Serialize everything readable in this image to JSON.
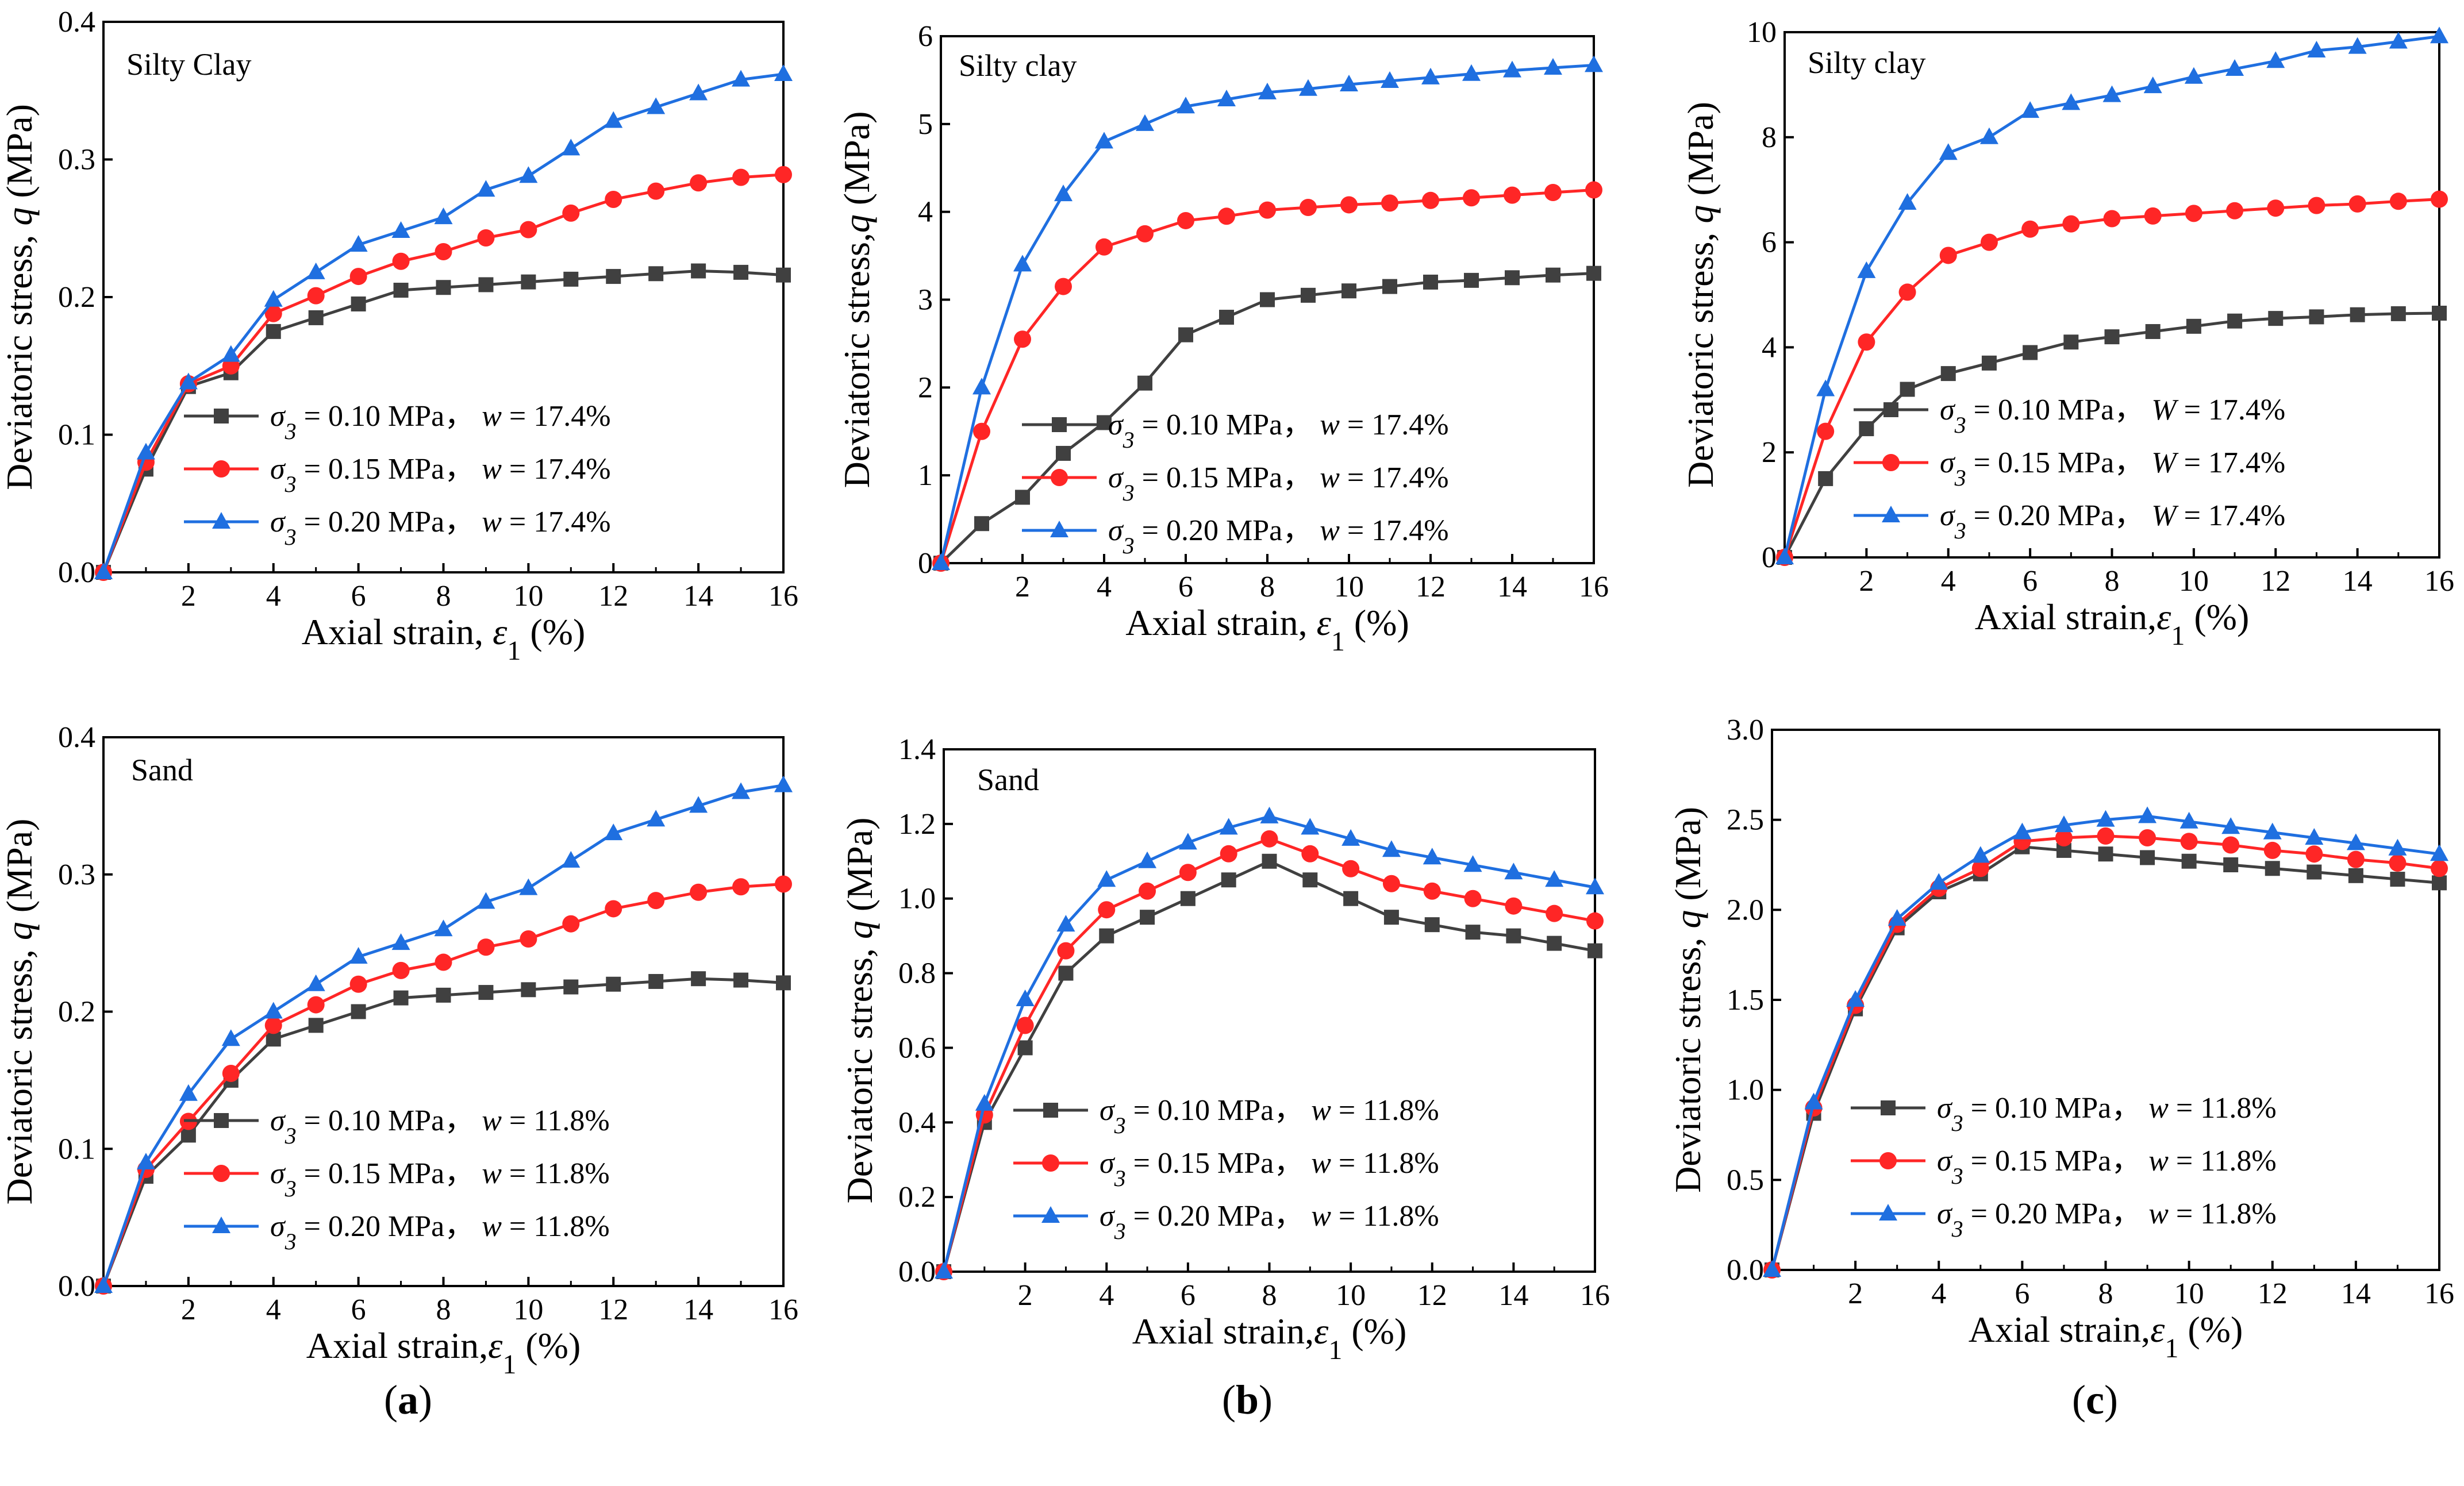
{
  "figure": {
    "sublabels": [
      "(a)",
      "(b)",
      "(c)"
    ]
  },
  "chart_data": [
    {
      "type": "line",
      "title": "Silty Clay",
      "xlabel": "Axial strain, ε1 (%)",
      "ylabel": "Deviatoric stress, q (MPa)",
      "xlim": [
        0,
        16
      ],
      "ylim": [
        0,
        0.4
      ],
      "xticks": [
        2,
        4,
        6,
        8,
        10,
        12,
        14,
        16
      ],
      "yticks": [
        0.0,
        0.1,
        0.2,
        0.3,
        0.4
      ],
      "ytick_labels": [
        "0.0",
        "0.1",
        "0.2",
        "0.3",
        "0.4"
      ],
      "x": [
        0,
        1,
        2,
        3,
        4,
        5,
        6,
        7,
        8,
        9,
        10,
        11,
        12,
        13,
        14,
        15,
        16
      ],
      "series": [
        {
          "name": "σ3 = 0.10 MPa，w = 17.4%",
          "color": "#404040",
          "marker": "square",
          "values": [
            0,
            0.075,
            0.135,
            0.145,
            0.175,
            0.185,
            0.195,
            0.205,
            0.207,
            0.209,
            0.211,
            0.213,
            0.215,
            0.217,
            0.219,
            0.218,
            0.216
          ]
        },
        {
          "name": "σ3 = 0.15 MPa，w = 17.4%",
          "color": "#ff2626",
          "marker": "circle",
          "values": [
            0,
            0.08,
            0.137,
            0.15,
            0.188,
            0.201,
            0.215,
            0.226,
            0.233,
            0.243,
            0.249,
            0.261,
            0.271,
            0.277,
            0.283,
            0.287,
            0.289
          ]
        },
        {
          "name": "σ3 = 0.20 MPa，w = 17.4%",
          "color": "#1f6fe0",
          "marker": "triangle",
          "values": [
            0,
            0.087,
            0.138,
            0.158,
            0.198,
            0.218,
            0.238,
            0.248,
            0.258,
            0.278,
            0.288,
            0.308,
            0.328,
            0.338,
            0.348,
            0.358,
            0.362
          ]
        }
      ],
      "legend_labels": [
        {
          "sigma": "= 0.10 MPa，",
          "w": "= 17.4%"
        },
        {
          "sigma": "= 0.15 MPa，",
          "w": "= 17.4%"
        },
        {
          "sigma": "= 0.20 MPa，",
          "w": "= 17.4%"
        }
      ],
      "legend_w_symbol": "w"
    },
    {
      "type": "line",
      "title": "Silty clay",
      "xlabel": "Axial strain, ε1 (%)",
      "ylabel": "Deviatoric stress,q (MPa)",
      "xlim": [
        0,
        16
      ],
      "ylim": [
        0,
        6
      ],
      "xticks": [
        2,
        4,
        6,
        8,
        10,
        12,
        14,
        16
      ],
      "yticks": [
        0,
        1,
        2,
        3,
        4,
        5,
        6
      ],
      "ytick_labels": [
        "0",
        "1",
        "2",
        "3",
        "4",
        "5",
        "6"
      ],
      "x": [
        0,
        1,
        2,
        3,
        4,
        5,
        6,
        7,
        8,
        9,
        10,
        11,
        12,
        13,
        14,
        15,
        16
      ],
      "series": [
        {
          "name": "σ3 = 0.10 MPa，w = 17.4%",
          "color": "#404040",
          "marker": "square",
          "values": [
            0,
            0.45,
            0.75,
            1.25,
            1.6,
            2.05,
            2.6,
            2.8,
            3.0,
            3.05,
            3.1,
            3.15,
            3.2,
            3.22,
            3.25,
            3.28,
            3.3
          ]
        },
        {
          "name": "σ3 = 0.15 MPa，w = 17.4%",
          "color": "#ff2626",
          "marker": "circle",
          "values": [
            0,
            1.5,
            2.55,
            3.15,
            3.6,
            3.75,
            3.9,
            3.95,
            4.02,
            4.05,
            4.08,
            4.1,
            4.13,
            4.16,
            4.19,
            4.22,
            4.25
          ]
        },
        {
          "name": "σ3 = 0.20 MPa，w = 17.4%",
          "color": "#1f6fe0",
          "marker": "triangle",
          "values": [
            0,
            2.0,
            3.4,
            4.2,
            4.8,
            5.0,
            5.2,
            5.28,
            5.36,
            5.4,
            5.45,
            5.49,
            5.53,
            5.57,
            5.61,
            5.64,
            5.67
          ]
        }
      ],
      "legend_labels": [
        {
          "sigma": "= 0.10 MPa，",
          "w": "= 17.4%"
        },
        {
          "sigma": "= 0.15 MPa，",
          "w": "= 17.4%"
        },
        {
          "sigma": "= 0.20 MPa，",
          "w": "= 17.4%"
        }
      ],
      "legend_w_symbol": "w"
    },
    {
      "type": "line",
      "title": "Silty clay",
      "xlabel": "Axial strain,ε1 (%)",
      "ylabel": "Deviatoric stress, q (MPa)",
      "xlim": [
        0,
        16
      ],
      "ylim": [
        0,
        10
      ],
      "xticks": [
        2,
        4,
        6,
        8,
        10,
        12,
        14,
        16
      ],
      "yticks": [
        0,
        2,
        4,
        6,
        8,
        10
      ],
      "ytick_labels": [
        "0",
        "2",
        "4",
        "6",
        "8",
        "10"
      ],
      "x": [
        0,
        1,
        2,
        3,
        4,
        5,
        6,
        7,
        8,
        9,
        10,
        11,
        12,
        13,
        14,
        15,
        16
      ],
      "series": [
        {
          "name": "σ3 = 0.10 MPa，W = 17.4%",
          "color": "#404040",
          "marker": "square",
          "values": [
            0,
            1.5,
            2.45,
            3.2,
            3.5,
            3.7,
            3.9,
            4.1,
            4.2,
            4.3,
            4.4,
            4.5,
            4.55,
            4.58,
            4.62,
            4.64,
            4.65
          ]
        },
        {
          "name": "σ3 = 0.15 MPa，W = 17.4%",
          "color": "#ff2626",
          "marker": "circle",
          "values": [
            0,
            2.4,
            4.1,
            5.05,
            5.75,
            6.0,
            6.25,
            6.35,
            6.45,
            6.5,
            6.55,
            6.6,
            6.65,
            6.7,
            6.73,
            6.78,
            6.82
          ]
        },
        {
          "name": "σ3 = 0.20 MPa，W = 17.4%",
          "color": "#1f6fe0",
          "marker": "triangle",
          "values": [
            0,
            3.2,
            5.45,
            6.75,
            7.7,
            8.0,
            8.5,
            8.65,
            8.8,
            8.97,
            9.15,
            9.3,
            9.45,
            9.65,
            9.72,
            9.82,
            9.92
          ]
        }
      ],
      "legend_labels": [
        {
          "sigma": "= 0.10 MPa，",
          "w": "= 17.4%"
        },
        {
          "sigma": "= 0.15 MPa，",
          "w": "= 17.4%"
        },
        {
          "sigma": "= 0.20 MPa，",
          "w": "= 17.4%"
        }
      ],
      "legend_w_symbol": "W"
    },
    {
      "type": "line",
      "title": "Sand",
      "xlabel": "Axial strain,ε1 (%)",
      "ylabel": "Deviatoric stress, q (MPa)",
      "xlim": [
        0,
        16
      ],
      "ylim": [
        0,
        0.4
      ],
      "xticks": [
        2,
        4,
        6,
        8,
        10,
        12,
        14,
        16
      ],
      "yticks": [
        0.0,
        0.1,
        0.2,
        0.3,
        0.4
      ],
      "ytick_labels": [
        "0.0",
        "0.1",
        "0.2",
        "0.3",
        "0.4"
      ],
      "x": [
        0,
        1,
        2,
        3,
        4,
        5,
        6,
        7,
        8,
        9,
        10,
        11,
        12,
        13,
        14,
        15,
        16
      ],
      "series": [
        {
          "name": "σ3 = 0.10 MPa，w = 11.8%",
          "color": "#404040",
          "marker": "square",
          "values": [
            0,
            0.08,
            0.11,
            0.15,
            0.18,
            0.19,
            0.2,
            0.21,
            0.212,
            0.214,
            0.216,
            0.218,
            0.22,
            0.222,
            0.224,
            0.223,
            0.221
          ]
        },
        {
          "name": "σ3 = 0.15 MPa，w = 11.8%",
          "color": "#ff2626",
          "marker": "circle",
          "values": [
            0,
            0.085,
            0.12,
            0.155,
            0.19,
            0.205,
            0.22,
            0.23,
            0.236,
            0.247,
            0.253,
            0.264,
            0.275,
            0.281,
            0.287,
            0.291,
            0.293
          ]
        },
        {
          "name": "σ3 = 0.20 MPa，w = 11.8%",
          "color": "#1f6fe0",
          "marker": "triangle",
          "values": [
            0,
            0.09,
            0.14,
            0.18,
            0.2,
            0.22,
            0.24,
            0.25,
            0.26,
            0.28,
            0.29,
            0.31,
            0.33,
            0.34,
            0.35,
            0.36,
            0.365
          ]
        }
      ],
      "legend_labels": [
        {
          "sigma": "= 0.10 MPa，",
          "w": "= 11.8%"
        },
        {
          "sigma": "= 0.15 MPa，",
          "w": "= 11.8%"
        },
        {
          "sigma": "= 0.20 MPa，",
          "w": "= 11.8%"
        }
      ],
      "legend_w_symbol": "w"
    },
    {
      "type": "line",
      "title": "Sand",
      "xlabel": "Axial strain,ε1 (%)",
      "ylabel": "Deviatoric stress, q (MPa)",
      "xlim": [
        0,
        16
      ],
      "ylim": [
        0,
        1.4
      ],
      "xticks": [
        2,
        4,
        6,
        8,
        10,
        12,
        14,
        16
      ],
      "yticks": [
        0.0,
        0.2,
        0.4,
        0.6,
        0.8,
        1.0,
        1.2,
        1.4
      ],
      "ytick_labels": [
        "0.0",
        "0.2",
        "0.4",
        "0.6",
        "0.8",
        "1.0",
        "1.2",
        "1.4"
      ],
      "x": [
        0,
        1,
        2,
        3,
        4,
        5,
        6,
        7,
        8,
        9,
        10,
        11,
        12,
        13,
        14,
        15,
        16
      ],
      "series": [
        {
          "name": "σ3 = 0.10 MPa，w = 11.8%",
          "color": "#404040",
          "marker": "square",
          "values": [
            0,
            0.4,
            0.6,
            0.8,
            0.9,
            0.95,
            1.0,
            1.05,
            1.1,
            1.05,
            1.0,
            0.95,
            0.93,
            0.91,
            0.9,
            0.88,
            0.86
          ]
        },
        {
          "name": "σ3 = 0.15 MPa，w = 11.8%",
          "color": "#ff2626",
          "marker": "circle",
          "values": [
            0,
            0.42,
            0.66,
            0.86,
            0.97,
            1.02,
            1.07,
            1.12,
            1.16,
            1.12,
            1.08,
            1.04,
            1.02,
            1.0,
            0.98,
            0.96,
            0.94
          ]
        },
        {
          "name": "σ3 = 0.20 MPa，w = 11.8%",
          "color": "#1f6fe0",
          "marker": "triangle",
          "values": [
            0,
            0.45,
            0.73,
            0.93,
            1.05,
            1.1,
            1.15,
            1.19,
            1.22,
            1.19,
            1.16,
            1.13,
            1.11,
            1.09,
            1.07,
            1.05,
            1.03
          ]
        }
      ],
      "legend_labels": [
        {
          "sigma": "= 0.10 MPa，",
          "w": "= 11.8%"
        },
        {
          "sigma": "= 0.15 MPa，",
          "w": "= 11.8%"
        },
        {
          "sigma": "= 0.20 MPa，",
          "w": "= 11.8%"
        }
      ],
      "legend_w_symbol": "w"
    },
    {
      "type": "line",
      "title": "",
      "xlabel": "Axial strain,ε1 (%)",
      "ylabel": "Deviatoric stress, q (MPa)",
      "xlim": [
        0,
        16
      ],
      "ylim": [
        0,
        3.0
      ],
      "xticks": [
        2,
        4,
        6,
        8,
        10,
        12,
        14,
        16
      ],
      "yticks": [
        0.0,
        0.5,
        1.0,
        1.5,
        2.0,
        2.5,
        3.0
      ],
      "ytick_labels": [
        "0.0",
        "0.5",
        "1.0",
        "1.5",
        "2.0",
        "2.5",
        "3.0"
      ],
      "x": [
        0,
        1,
        2,
        3,
        4,
        5,
        6,
        7,
        8,
        9,
        10,
        11,
        12,
        13,
        14,
        15,
        16
      ],
      "series": [
        {
          "name": "σ3 = 0.10 MPa，w = 11.8%",
          "color": "#404040",
          "marker": "square",
          "values": [
            0,
            0.87,
            1.45,
            1.9,
            2.1,
            2.2,
            2.35,
            2.33,
            2.31,
            2.29,
            2.27,
            2.25,
            2.23,
            2.21,
            2.19,
            2.17,
            2.15
          ]
        },
        {
          "name": "σ3 = 0.15 MPa，w = 11.8%",
          "color": "#ff2626",
          "marker": "circle",
          "values": [
            0,
            0.9,
            1.47,
            1.92,
            2.12,
            2.23,
            2.38,
            2.4,
            2.41,
            2.4,
            2.38,
            2.36,
            2.33,
            2.31,
            2.28,
            2.26,
            2.23
          ]
        },
        {
          "name": "σ3 = 0.20 MPa，w = 11.8%",
          "color": "#1f6fe0",
          "marker": "triangle",
          "values": [
            0,
            0.93,
            1.5,
            1.95,
            2.15,
            2.3,
            2.43,
            2.47,
            2.5,
            2.52,
            2.49,
            2.46,
            2.43,
            2.4,
            2.37,
            2.34,
            2.31
          ]
        }
      ],
      "legend_labels": [
        {
          "sigma": "= 0.10 MPa，",
          "w": "= 11.8%"
        },
        {
          "sigma": "= 0.15 MPa，",
          "w": "= 11.8%"
        },
        {
          "sigma": "= 0.20 MPa，",
          "w": "= 11.8%"
        }
      ],
      "legend_w_symbol": "w"
    }
  ]
}
